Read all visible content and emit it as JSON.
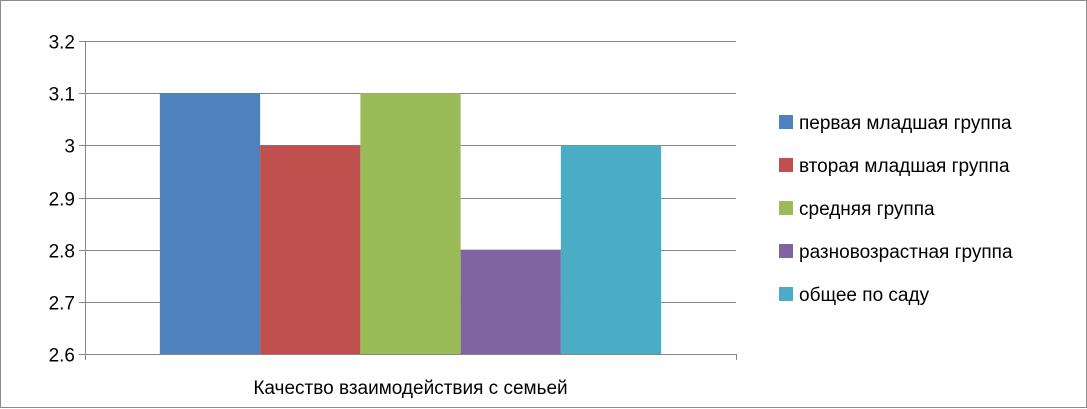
{
  "chart_data": {
    "type": "bar",
    "title": "",
    "xlabel": "",
    "ylabel": "",
    "categories": [
      "Качество взаимодействия с семьей"
    ],
    "series": [
      {
        "name": "первая младшая группа",
        "values": [
          3.1
        ],
        "color": "#4F81BD"
      },
      {
        "name": "вторая младшая группа",
        "values": [
          3.0
        ],
        "color": "#C0504D"
      },
      {
        "name": "средняя группа",
        "values": [
          3.1
        ],
        "color": "#9BBB59"
      },
      {
        "name": "разновозрастная группа",
        "values": [
          2.8
        ],
        "color": "#8064A2"
      },
      {
        "name": "общее по саду",
        "values": [
          3.0
        ],
        "color": "#4BACC6"
      }
    ],
    "ylim": [
      2.6,
      3.2
    ],
    "yticks": [
      "2.6",
      "2.7",
      "2.8",
      "2.9",
      "3",
      "3.1",
      "3.2"
    ],
    "grid": true,
    "legend": "right"
  }
}
